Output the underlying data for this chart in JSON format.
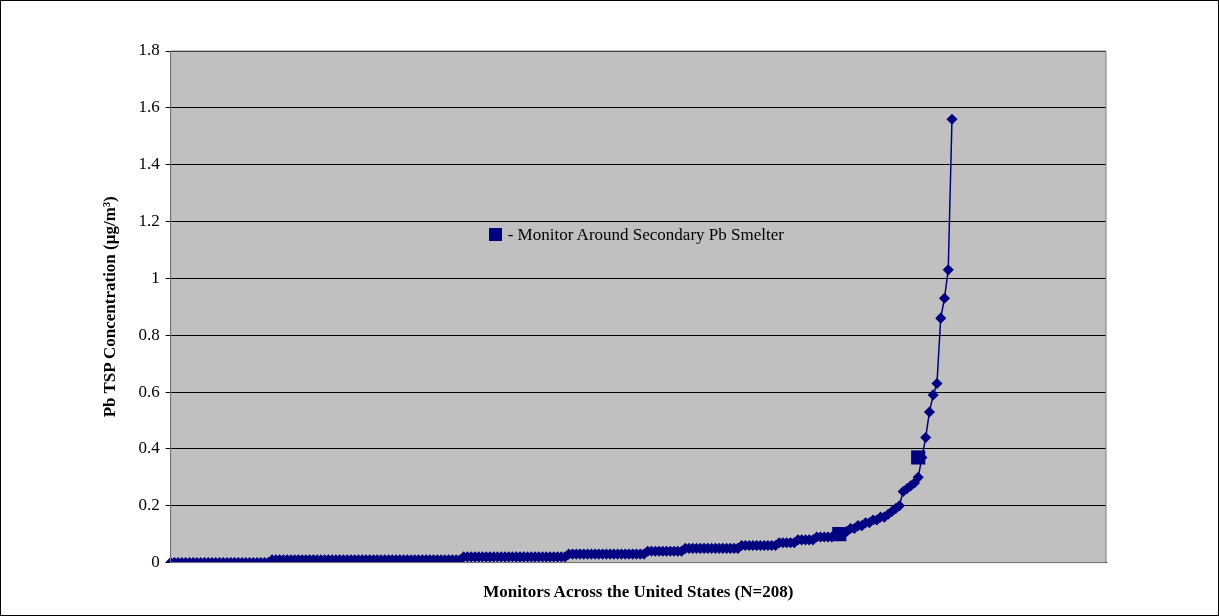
{
  "chart_data": {
    "type": "line",
    "xlabel": "Monitors Across the United States (N=208)",
    "ylabel": "Pb TSP Concentration (µg/m³)",
    "categories": [
      null,
      null,
      null,
      null,
      null,
      null,
      null,
      null,
      null,
      null,
      null,
      null,
      null,
      null,
      null,
      null,
      null,
      null,
      null,
      null,
      null,
      null,
      null,
      null,
      null,
      null,
      null,
      null,
      null,
      null,
      null,
      null,
      null,
      null,
      null,
      null,
      null,
      null,
      null,
      null,
      null,
      null,
      null,
      null,
      null,
      null,
      null,
      null,
      null,
      null,
      null,
      null,
      null,
      null,
      null,
      null,
      null,
      null,
      null,
      null,
      null,
      null,
      null,
      null,
      null,
      null,
      null,
      null,
      null,
      null,
      null,
      null,
      null,
      null,
      null,
      null,
      null,
      null,
      null,
      null,
      null,
      null,
      null,
      null,
      null,
      null,
      null,
      null,
      null,
      null,
      null,
      null,
      null,
      null,
      null,
      null,
      null,
      null,
      null,
      null,
      null,
      null,
      null,
      null,
      null,
      null,
      null,
      null,
      null,
      null,
      null,
      null,
      null,
      null,
      null,
      null,
      null,
      null,
      null,
      null,
      null,
      null,
      null,
      null,
      null,
      null,
      null,
      null,
      null,
      null,
      null,
      null,
      null,
      null,
      null,
      null,
      null,
      null,
      null,
      null,
      null,
      null,
      null,
      null,
      null,
      null,
      null,
      null,
      null,
      null,
      null,
      null,
      null,
      null,
      null,
      null,
      null,
      null,
      null,
      null,
      null,
      null,
      null,
      null,
      null,
      null,
      null,
      null,
      null,
      null,
      null,
      null,
      null,
      null,
      null,
      null,
      null,
      null,
      null,
      null,
      null,
      null,
      null,
      null,
      null,
      null,
      null,
      null,
      null,
      null,
      null,
      null,
      null,
      null,
      null,
      null,
      null,
      null,
      null,
      null,
      null,
      null,
      null,
      null,
      null,
      null,
      null,
      null,
      null,
      null,
      null,
      null,
      null,
      null,
      null,
      null,
      null,
      null,
      null,
      null,
      null,
      null,
      null,
      null,
      null,
      null,
      null,
      null,
      null,
      null,
      null,
      null,
      null,
      null,
      null,
      null,
      null,
      null,
      null,
      null,
      null,
      null,
      null,
      null,
      null,
      null,
      null,
      null,
      null,
      null
    ],
    "series": [
      {
        "marker": "diamond",
        "line_style": "solid",
        "color": "#000080",
        "values": [
          0,
          0,
          0,
          0,
          0,
          0,
          0,
          0,
          0,
          0,
          0,
          0,
          0,
          0,
          0,
          0,
          0,
          0,
          0,
          0,
          0,
          0,
          0,
          0,
          0,
          0,
          0,
          0.01,
          0.01,
          0.01,
          0.01,
          0.01,
          0.01,
          0.01,
          0.01,
          0.01,
          0.01,
          0.01,
          0.01,
          0.01,
          0.01,
          0.01,
          0.01,
          0.01,
          0.01,
          0.01,
          0.01,
          0.01,
          0.01,
          0.01,
          0.01,
          0.01,
          0.01,
          0.01,
          0.01,
          0.01,
          0.01,
          0.01,
          0.01,
          0.01,
          0.01,
          0.01,
          0.01,
          0.01,
          0.01,
          0.01,
          0.01,
          0.01,
          0.01,
          0.01,
          0.01,
          0.01,
          0.01,
          0.01,
          0.01,
          0.01,
          0.01,
          0.01,
          0.02,
          0.02,
          0.02,
          0.02,
          0.02,
          0.02,
          0.02,
          0.02,
          0.02,
          0.02,
          0.02,
          0.02,
          0.02,
          0.02,
          0.02,
          0.02,
          0.02,
          0.02,
          0.02,
          0.02,
          0.02,
          0.02,
          0.02,
          0.02,
          0.02,
          0.02,
          0.02,
          0.02,
          0.03,
          0.03,
          0.03,
          0.03,
          0.03,
          0.03,
          0.03,
          0.03,
          0.03,
          0.03,
          0.03,
          0.03,
          0.03,
          0.03,
          0.03,
          0.03,
          0.03,
          0.03,
          0.03,
          0.03,
          0.03,
          0.04,
          0.04,
          0.04,
          0.04,
          0.04,
          0.04,
          0.04,
          0.04,
          0.04,
          0.04,
          0.05,
          0.05,
          0.05,
          0.05,
          0.05,
          0.05,
          0.05,
          0.05,
          0.05,
          0.05,
          0.05,
          0.05,
          0.05,
          0.05,
          0.05,
          0.06,
          0.06,
          0.06,
          0.06,
          0.06,
          0.06,
          0.06,
          0.06,
          0.06,
          0.06,
          0.07,
          0.07,
          0.07,
          0.07,
          0.07,
          0.08,
          0.08,
          0.08,
          0.08,
          0.08,
          0.09,
          0.09,
          0.09,
          0.09,
          0.09,
          0.1,
          0.1,
          0.1,
          0.11,
          0.12,
          0.12,
          0.13,
          0.13,
          0.14,
          0.14,
          0.15,
          0.15,
          0.16,
          0.16,
          0.17,
          0.18,
          0.19,
          0.2,
          0.25,
          0.26,
          0.27,
          0.28,
          0.3,
          0.37,
          0.44,
          0.53,
          0.59,
          0.63,
          0.86,
          0.93,
          1.03,
          1.56,
          null,
          null,
          null,
          null,
          null,
          null,
          null,
          null,
          null,
          null,
          null,
          null,
          null,
          null,
          null,
          null,
          null,
          null,
          null,
          null,
          null,
          null,
          null,
          null,
          null,
          null,
          null,
          null,
          null,
          null,
          null,
          null,
          null,
          null,
          null,
          null,
          null,
          null,
          null,
          null,
          null
        ]
      },
      {
        "type": "scatter",
        "marker": "square",
        "name": "- Monitor Around Secondary Pb Smelter",
        "color": "#000080",
        "values": [
          null,
          null,
          null,
          null,
          null,
          null,
          null,
          null,
          null,
          null,
          null,
          null,
          null,
          null,
          null,
          null,
          null,
          null,
          null,
          null,
          null,
          null,
          null,
          null,
          null,
          null,
          null,
          null,
          null,
          null,
          null,
          null,
          null,
          null,
          null,
          null,
          null,
          null,
          null,
          null,
          null,
          null,
          null,
          null,
          null,
          null,
          null,
          null,
          null,
          null,
          null,
          null,
          null,
          null,
          null,
          null,
          null,
          null,
          null,
          null,
          null,
          null,
          null,
          null,
          null,
          null,
          null,
          null,
          null,
          null,
          null,
          null,
          null,
          null,
          null,
          null,
          null,
          null,
          null,
          null,
          null,
          null,
          null,
          null,
          null,
          null,
          null,
          null,
          null,
          null,
          null,
          null,
          null,
          null,
          null,
          null,
          null,
          null,
          null,
          null,
          null,
          null,
          null,
          null,
          null,
          null,
          null,
          null,
          null,
          null,
          null,
          null,
          null,
          null,
          null,
          null,
          null,
          null,
          null,
          null,
          null,
          null,
          null,
          null,
          null,
          null,
          null,
          null,
          null,
          null,
          null,
          null,
          null,
          null,
          null,
          null,
          null,
          null,
          null,
          null,
          null,
          null,
          null,
          null,
          null,
          null,
          null,
          null,
          null,
          null,
          null,
          null,
          null,
          null,
          null,
          null,
          null,
          null,
          null,
          null,
          null,
          null,
          null,
          null,
          null,
          null,
          null,
          null,
          null,
          null,
          null,
          null,
          null,
          null,
          null,
          null,
          null,
          null,
          0.1,
          null,
          null,
          null,
          null,
          null,
          null,
          null,
          null,
          null,
          null,
          null,
          null,
          null,
          null,
          null,
          null,
          null,
          null,
          null,
          null,
          0.37,
          null,
          null,
          null,
          null,
          null,
          null,
          null,
          null,
          null,
          null,
          null,
          null,
          null,
          null,
          null,
          null,
          null,
          null,
          null,
          null,
          null,
          null,
          null,
          null,
          null,
          null,
          null,
          null,
          null,
          null,
          null,
          null,
          null,
          null,
          null,
          null,
          null,
          null,
          null,
          null,
          null,
          null,
          null,
          null,
          null,
          null,
          null,
          null,
          null,
          null
        ]
      }
    ],
    "ylim": [
      0,
      1.8
    ],
    "yticks": [
      0,
      0.2,
      0.4,
      0.6,
      0.8,
      1,
      1.2,
      1.4,
      1.6,
      1.8
    ],
    "grid": "y",
    "legend": "center",
    "tick_labels": "y"
  }
}
